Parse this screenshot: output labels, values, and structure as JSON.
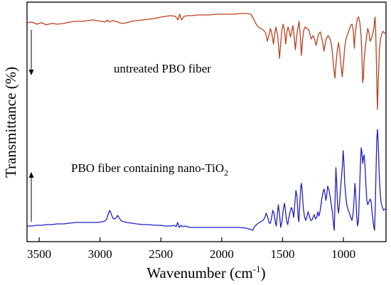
{
  "chart_data": {
    "type": "line",
    "xlabel": "Wavenumber (cm",
    "xlabel_sup": "-1",
    "xlabel_end": ")",
    "ylabel": "Transmittance (%)",
    "xlim": [
      3600,
      650
    ],
    "x_reversed": true,
    "xticks": [
      3500,
      3000,
      2500,
      2000,
      1500,
      1000
    ],
    "xtick_labels": [
      "3500",
      "3000",
      "2500",
      "2000",
      "1500",
      "1000"
    ],
    "annotations": {
      "top": "untreated PBO fiber",
      "bottom_main": "PBO fiber containing nano-TiO",
      "bottom_sub": "2"
    },
    "series": [
      {
        "name": "untreated PBO fiber",
        "color": "#b5401e",
        "points": [
          [
            3600,
            32
          ],
          [
            3560,
            31
          ],
          [
            3520,
            34
          ],
          [
            3480,
            32
          ],
          [
            3440,
            35
          ],
          [
            3400,
            33
          ],
          [
            3350,
            34
          ],
          [
            3300,
            33
          ],
          [
            3250,
            31
          ],
          [
            3200,
            30
          ],
          [
            3150,
            30
          ],
          [
            3100,
            29
          ],
          [
            3060,
            28
          ],
          [
            3030,
            29
          ],
          [
            2990,
            30
          ],
          [
            2960,
            31
          ],
          [
            2940,
            28
          ],
          [
            2920,
            31
          ],
          [
            2900,
            29
          ],
          [
            2870,
            30
          ],
          [
            2820,
            33
          ],
          [
            2780,
            32
          ],
          [
            2740,
            30
          ],
          [
            2700,
            29
          ],
          [
            2650,
            28
          ],
          [
            2600,
            27
          ],
          [
            2550,
            26
          ],
          [
            2500,
            24
          ],
          [
            2460,
            23
          ],
          [
            2420,
            22
          ],
          [
            2380,
            23
          ],
          [
            2360,
            28
          ],
          [
            2345,
            20
          ],
          [
            2330,
            28
          ],
          [
            2310,
            23
          ],
          [
            2280,
            22
          ],
          [
            2240,
            22
          ],
          [
            2200,
            21
          ],
          [
            2150,
            21
          ],
          [
            2100,
            21
          ],
          [
            2050,
            20
          ],
          [
            2000,
            20
          ],
          [
            1950,
            20
          ],
          [
            1900,
            20
          ],
          [
            1850,
            19
          ],
          [
            1800,
            19
          ],
          [
            1760,
            20
          ],
          [
            1740,
            26
          ],
          [
            1720,
            33
          ],
          [
            1700,
            38
          ],
          [
            1680,
            40
          ],
          [
            1660,
            42
          ],
          [
            1640,
            46
          ],
          [
            1625,
            58
          ],
          [
            1610,
            48
          ],
          [
            1600,
            40
          ],
          [
            1590,
            46
          ],
          [
            1575,
            62
          ],
          [
            1565,
            48
          ],
          [
            1555,
            38
          ],
          [
            1540,
            50
          ],
          [
            1525,
            82
          ],
          [
            1515,
            60
          ],
          [
            1505,
            42
          ],
          [
            1495,
            34
          ],
          [
            1485,
            42
          ],
          [
            1475,
            62
          ],
          [
            1465,
            46
          ],
          [
            1455,
            38
          ],
          [
            1445,
            44
          ],
          [
            1435,
            52
          ],
          [
            1425,
            44
          ],
          [
            1415,
            36
          ],
          [
            1405,
            52
          ],
          [
            1395,
            70
          ],
          [
            1385,
            52
          ],
          [
            1375,
            40
          ],
          [
            1365,
            30
          ],
          [
            1355,
            48
          ],
          [
            1345,
            78
          ],
          [
            1335,
            55
          ],
          [
            1325,
            42
          ],
          [
            1315,
            38
          ],
          [
            1300,
            40
          ],
          [
            1285,
            42
          ],
          [
            1275,
            48
          ],
          [
            1265,
            55
          ],
          [
            1250,
            50
          ],
          [
            1235,
            56
          ],
          [
            1225,
            64
          ],
          [
            1215,
            56
          ],
          [
            1205,
            48
          ],
          [
            1190,
            45
          ],
          [
            1180,
            52
          ],
          [
            1170,
            60
          ],
          [
            1160,
            72
          ],
          [
            1150,
            62
          ],
          [
            1140,
            54
          ],
          [
            1125,
            50
          ],
          [
            1110,
            55
          ],
          [
            1100,
            62
          ],
          [
            1090,
            75
          ],
          [
            1080,
            95
          ],
          [
            1070,
            110
          ],
          [
            1060,
            88
          ],
          [
            1050,
            70
          ],
          [
            1040,
            60
          ],
          [
            1030,
            72
          ],
          [
            1020,
            92
          ],
          [
            1010,
            108
          ],
          [
            1000,
            90
          ],
          [
            990,
            68
          ],
          [
            980,
            56
          ],
          [
            970,
            50
          ],
          [
            960,
            46
          ],
          [
            950,
            40
          ],
          [
            940,
            36
          ],
          [
            930,
            34
          ],
          [
            920,
            42
          ],
          [
            915,
            56
          ],
          [
            910,
            68
          ],
          [
            905,
            52
          ],
          [
            895,
            36
          ],
          [
            885,
            26
          ],
          [
            875,
            24
          ],
          [
            865,
            32
          ],
          [
            855,
            50
          ],
          [
            848,
            78
          ],
          [
            842,
            116
          ],
          [
            836,
            110
          ],
          [
            830,
            84
          ],
          [
            820,
            66
          ],
          [
            810,
            52
          ],
          [
            800,
            40
          ],
          [
            790,
            46
          ],
          [
            780,
            58
          ],
          [
            770,
            54
          ],
          [
            760,
            48
          ],
          [
            750,
            40
          ],
          [
            745,
            30
          ],
          [
            740,
            24
          ],
          [
            735,
            42
          ],
          [
            730,
            78
          ],
          [
            725,
            126
          ],
          [
            720,
            154
          ],
          [
            715,
            120
          ],
          [
            705,
            72
          ],
          [
            695,
            54
          ],
          [
            685,
            48
          ],
          [
            675,
            44
          ],
          [
            665,
            46
          ],
          [
            650,
            48
          ]
        ]
      },
      {
        "name": "PBO fiber containing nano-TiO2",
        "color": "#1f1fc4",
        "points": [
          [
            3600,
            318
          ],
          [
            3560,
            318
          ],
          [
            3520,
            317
          ],
          [
            3480,
            317
          ],
          [
            3440,
            316
          ],
          [
            3400,
            316
          ],
          [
            3350,
            315
          ],
          [
            3300,
            315
          ],
          [
            3250,
            314
          ],
          [
            3200,
            313
          ],
          [
            3150,
            313
          ],
          [
            3100,
            313
          ],
          [
            3060,
            313
          ],
          [
            3020,
            313
          ],
          [
            2980,
            312
          ],
          [
            2960,
            311
          ],
          [
            2945,
            308
          ],
          [
            2930,
            300
          ],
          [
            2920,
            296
          ],
          [
            2910,
            300
          ],
          [
            2895,
            307
          ],
          [
            2880,
            308
          ],
          [
            2865,
            306
          ],
          [
            2855,
            303
          ],
          [
            2845,
            306
          ],
          [
            2825,
            311
          ],
          [
            2780,
            313
          ],
          [
            2740,
            314
          ],
          [
            2700,
            315
          ],
          [
            2650,
            316
          ],
          [
            2600,
            316
          ],
          [
            2550,
            317
          ],
          [
            2500,
            317
          ],
          [
            2460,
            318
          ],
          [
            2420,
            318
          ],
          [
            2390,
            317
          ],
          [
            2375,
            319
          ],
          [
            2362,
            313
          ],
          [
            2348,
            320
          ],
          [
            2335,
            317
          ],
          [
            2320,
            319
          ],
          [
            2300,
            318
          ],
          [
            2260,
            320
          ],
          [
            2200,
            320
          ],
          [
            2150,
            320
          ],
          [
            2100,
            320
          ],
          [
            2050,
            320
          ],
          [
            2000,
            320
          ],
          [
            1950,
            320
          ],
          [
            1900,
            320
          ],
          [
            1850,
            320
          ],
          [
            1800,
            321
          ],
          [
            1760,
            323
          ],
          [
            1745,
            324
          ],
          [
            1735,
            320
          ],
          [
            1720,
            317
          ],
          [
            1700,
            314
          ],
          [
            1680,
            312
          ],
          [
            1660,
            310
          ],
          [
            1645,
            306
          ],
          [
            1635,
            300
          ],
          [
            1625,
            304
          ],
          [
            1610,
            314
          ],
          [
            1600,
            314
          ],
          [
            1590,
            306
          ],
          [
            1580,
            296
          ],
          [
            1570,
            300
          ],
          [
            1560,
            312
          ],
          [
            1552,
            318
          ],
          [
            1542,
            300
          ],
          [
            1535,
            288
          ],
          [
            1526,
            300
          ],
          [
            1515,
            320
          ],
          [
            1505,
            312
          ],
          [
            1495,
            296
          ],
          [
            1485,
            286
          ],
          [
            1478,
            294
          ],
          [
            1468,
            310
          ],
          [
            1458,
            316
          ],
          [
            1448,
            306
          ],
          [
            1438,
            298
          ],
          [
            1428,
            292
          ],
          [
            1418,
            296
          ],
          [
            1408,
            306
          ],
          [
            1398,
            282
          ],
          [
            1390,
            268
          ],
          [
            1382,
            276
          ],
          [
            1372,
            306
          ],
          [
            1366,
            312
          ],
          [
            1358,
            284
          ],
          [
            1350,
            262
          ],
          [
            1345,
            258
          ],
          [
            1338,
            270
          ],
          [
            1330,
            292
          ],
          [
            1320,
            305
          ],
          [
            1310,
            310
          ],
          [
            1300,
            305
          ],
          [
            1290,
            298
          ],
          [
            1280,
            304
          ],
          [
            1270,
            310
          ],
          [
            1260,
            310
          ],
          [
            1250,
            306
          ],
          [
            1240,
            302
          ],
          [
            1230,
            308
          ],
          [
            1220,
            306
          ],
          [
            1210,
            298
          ],
          [
            1200,
            304
          ],
          [
            1190,
            295
          ],
          [
            1180,
            282
          ],
          [
            1170,
            272
          ],
          [
            1160,
            266
          ],
          [
            1152,
            272
          ],
          [
            1145,
            282
          ],
          [
            1138,
            276
          ],
          [
            1130,
            262
          ],
          [
            1120,
            266
          ],
          [
            1110,
            276
          ],
          [
            1100,
            288
          ],
          [
            1090,
            300
          ],
          [
            1080,
            318
          ],
          [
            1075,
            324
          ],
          [
            1068,
            278
          ],
          [
            1062,
            236
          ],
          [
            1055,
            260
          ],
          [
            1048,
            290
          ],
          [
            1040,
            300
          ],
          [
            1030,
            282
          ],
          [
            1022,
            262
          ],
          [
            1015,
            248
          ],
          [
            1008,
            232
          ],
          [
            1002,
            212
          ],
          [
            996,
            228
          ],
          [
            990,
            256
          ],
          [
            980,
            278
          ],
          [
            970,
            290
          ],
          [
            960,
            296
          ],
          [
            950,
            300
          ],
          [
            940,
            306
          ],
          [
            930,
            310
          ],
          [
            920,
            300
          ],
          [
            912,
            280
          ],
          [
            906,
            258
          ],
          [
            900,
            270
          ],
          [
            892,
            300
          ],
          [
            884,
            318
          ],
          [
            876,
            310
          ],
          [
            868,
            270
          ],
          [
            860,
            228
          ],
          [
            854,
            208
          ],
          [
            848,
            214
          ],
          [
            842,
            230
          ],
          [
            836,
            222
          ],
          [
            830,
            218
          ],
          [
            822,
            236
          ],
          [
            815,
            262
          ],
          [
            808,
            282
          ],
          [
            800,
            288
          ],
          [
            790,
            284
          ],
          [
            780,
            280
          ],
          [
            772,
            284
          ],
          [
            764,
            300
          ],
          [
            756,
            312
          ],
          [
            750,
            320
          ],
          [
            744,
            324
          ],
          [
            738,
            290
          ],
          [
            732,
            238
          ],
          [
            726,
            196
          ],
          [
            720,
            182
          ],
          [
            714,
            200
          ],
          [
            706,
            246
          ],
          [
            698,
            272
          ],
          [
            690,
            286
          ],
          [
            680,
            292
          ],
          [
            670,
            296
          ],
          [
            660,
            294
          ],
          [
            650,
            294
          ]
        ]
      }
    ]
  }
}
